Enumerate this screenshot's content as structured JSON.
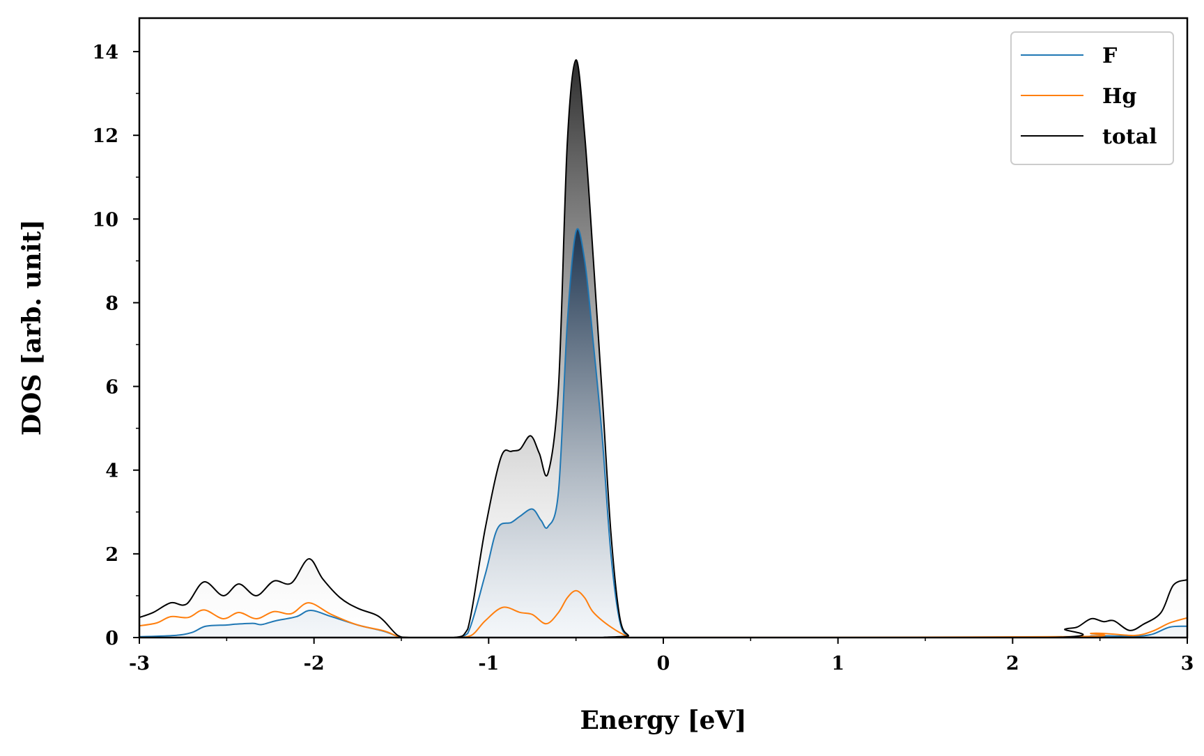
{
  "chart_data": {
    "type": "area",
    "title": "",
    "xlabel": "Energy [eV]",
    "ylabel": "DOS [arb. unit]",
    "xlim": [
      -3,
      3
    ],
    "ylim": [
      0,
      14.8
    ],
    "xticks": [
      "-3",
      "-2",
      "-1",
      "0",
      "1",
      "2",
      "3"
    ],
    "xtick_values": [
      -3,
      -2,
      -1,
      0,
      1,
      2,
      3
    ],
    "yticks": [
      "0",
      "2",
      "4",
      "6",
      "8",
      "10",
      "12",
      "14"
    ],
    "ytick_values": [
      0,
      2,
      4,
      6,
      8,
      10,
      12,
      14
    ],
    "grid": false,
    "legend_position": "top-right",
    "series": [
      {
        "name": "F",
        "color": "#1f77b4",
        "x": [
          -3.0,
          -2.8,
          -2.7,
          -2.62,
          -2.5,
          -2.45,
          -2.35,
          -2.3,
          -2.22,
          -2.1,
          -2.02,
          -1.9,
          -1.75,
          -1.6,
          -1.52,
          -1.45,
          -1.2,
          -1.12,
          -1.02,
          -0.95,
          -0.87,
          -0.82,
          -0.75,
          -0.7,
          -0.66,
          -0.6,
          -0.55,
          -0.5,
          -0.45,
          -0.4,
          -0.35,
          -0.3,
          -0.25,
          -0.2,
          -0.15,
          2.3,
          2.45,
          2.55,
          2.7,
          2.8,
          2.9,
          3.0
        ],
        "y": [
          0.02,
          0.05,
          0.12,
          0.27,
          0.3,
          0.32,
          0.34,
          0.31,
          0.4,
          0.5,
          0.65,
          0.5,
          0.3,
          0.15,
          0.03,
          0.0,
          0.0,
          0.1,
          1.5,
          2.6,
          2.75,
          2.9,
          3.07,
          2.8,
          2.65,
          3.5,
          7.5,
          9.7,
          9.0,
          7.0,
          4.8,
          2.0,
          0.4,
          0.03,
          0.0,
          0.0,
          0.04,
          0.04,
          0.03,
          0.08,
          0.25,
          0.27
        ]
      },
      {
        "name": "Hg",
        "color": "#ff7f0e",
        "x": [
          -3.0,
          -2.9,
          -2.82,
          -2.72,
          -2.63,
          -2.52,
          -2.43,
          -2.33,
          -2.23,
          -2.13,
          -2.03,
          -1.9,
          -1.75,
          -1.6,
          -1.52,
          -1.45,
          -1.2,
          -1.1,
          -1.02,
          -0.92,
          -0.82,
          -0.75,
          -0.67,
          -0.6,
          -0.55,
          -0.5,
          -0.45,
          -0.4,
          -0.3,
          -0.2,
          -0.15,
          2.3,
          2.45,
          2.55,
          2.7,
          2.8,
          2.9,
          3.0
        ],
        "y": [
          0.28,
          0.35,
          0.5,
          0.48,
          0.66,
          0.45,
          0.6,
          0.45,
          0.62,
          0.57,
          0.83,
          0.55,
          0.3,
          0.16,
          0.03,
          0.0,
          0.0,
          0.05,
          0.4,
          0.72,
          0.6,
          0.55,
          0.33,
          0.6,
          0.95,
          1.12,
          0.95,
          0.6,
          0.25,
          0.02,
          0.0,
          0.02,
          0.1,
          0.09,
          0.05,
          0.15,
          0.35,
          0.47
        ]
      },
      {
        "name": "total",
        "color": "#000000",
        "x": [
          -3.0,
          -2.92,
          -2.82,
          -2.73,
          -2.63,
          -2.52,
          -2.43,
          -2.33,
          -2.23,
          -2.13,
          -2.03,
          -1.95,
          -1.85,
          -1.75,
          -1.65,
          -1.6,
          -1.52,
          -1.45,
          -1.2,
          -1.12,
          -1.02,
          -0.93,
          -0.87,
          -0.82,
          -0.76,
          -0.71,
          -0.66,
          -0.6,
          -0.55,
          -0.5,
          -0.45,
          -0.4,
          -0.35,
          -0.3,
          -0.25,
          -0.2,
          -0.15,
          2.2,
          2.3,
          2.37,
          2.45,
          2.52,
          2.58,
          2.67,
          2.75,
          2.85,
          2.92,
          3.0
        ],
        "y": [
          0.48,
          0.6,
          0.83,
          0.8,
          1.33,
          1.0,
          1.28,
          1.0,
          1.35,
          1.3,
          1.88,
          1.4,
          0.95,
          0.7,
          0.55,
          0.4,
          0.05,
          0.0,
          0.0,
          0.2,
          2.6,
          4.3,
          4.45,
          4.5,
          4.82,
          4.4,
          3.93,
          6.0,
          11.8,
          13.8,
          12.0,
          9.0,
          5.8,
          2.5,
          0.5,
          0.05,
          0.0,
          0.0,
          0.2,
          0.25,
          0.45,
          0.38,
          0.4,
          0.17,
          0.32,
          0.6,
          1.25,
          1.38
        ]
      }
    ]
  }
}
